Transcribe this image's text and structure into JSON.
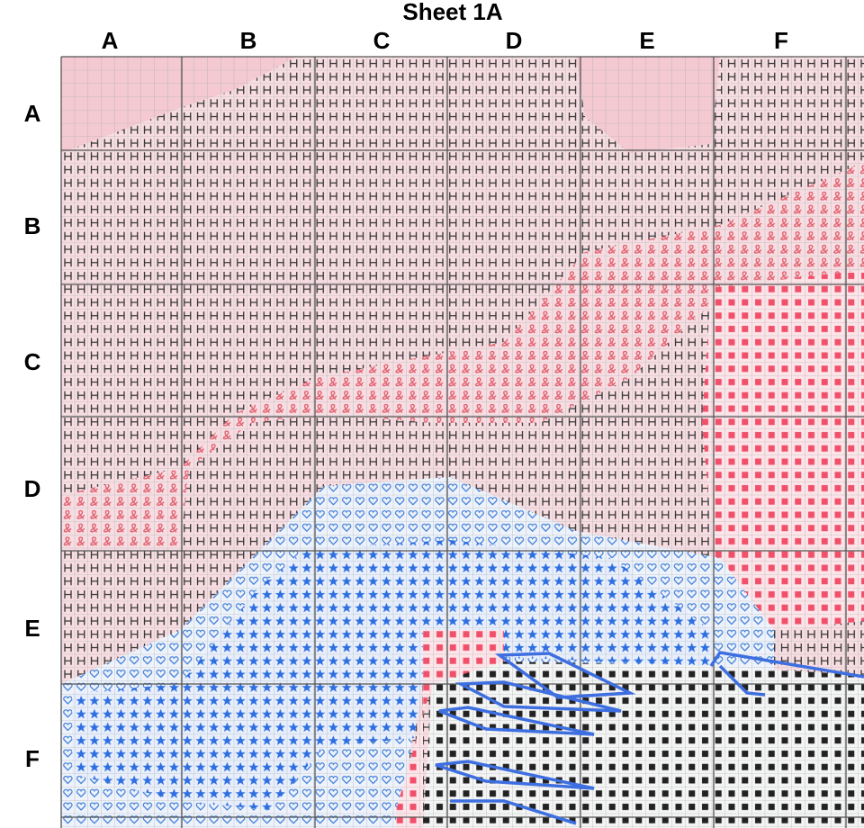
{
  "header": {
    "title": "Sheet  1A"
  },
  "grid": {
    "columns": [
      "A",
      "B",
      "C",
      "D",
      "E",
      "F"
    ],
    "rows": [
      "A",
      "B",
      "C",
      "D",
      "E",
      "F"
    ]
  }
}
